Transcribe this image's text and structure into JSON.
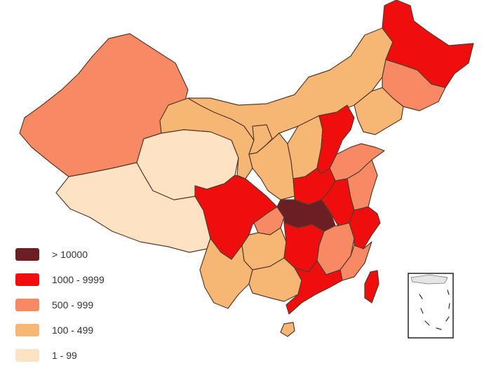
{
  "legend": {
    "items": [
      {
        "label": "> 10000",
        "color": "#6b1f24"
      },
      {
        "label": "1000 - 9999",
        "color": "#f00d0d"
      },
      {
        "label": "500 - 999",
        "color": "#f78a64"
      },
      {
        "label": "100 - 499",
        "color": "#f6b774"
      },
      {
        "label": "1 - 99",
        "color": "#fde3c4"
      }
    ]
  }
}
